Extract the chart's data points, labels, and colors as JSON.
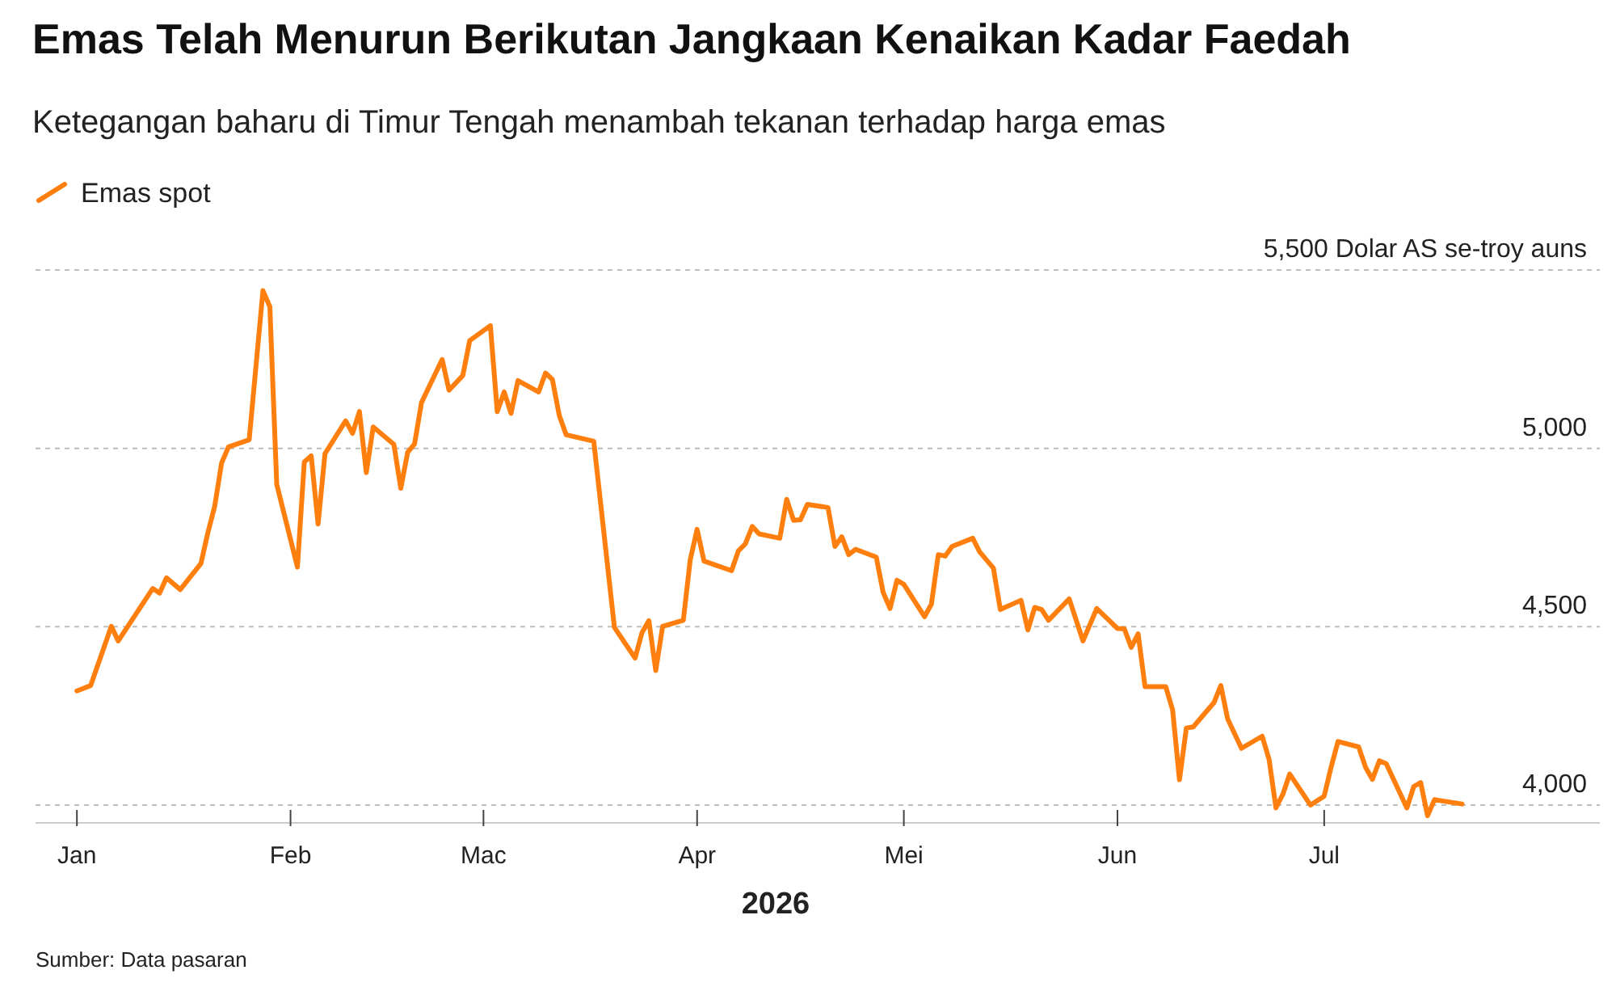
{
  "chart_data": {
    "type": "line",
    "title": "Emas Telah Menurun Berikutan Jangkaan Kenaikan Kadar Faedah",
    "subtitle": "Ketegangan baharu di Timur Tengah menambah tekanan terhadap harga emas",
    "xlabel": "2026",
    "annotations": [
      "Sumber: Data pasaran"
    ],
    "x": [
      "2026-01-01",
      "2026-01-03",
      "2026-01-06",
      "2026-01-07",
      "2026-01-12",
      "2026-01-13",
      "2026-01-14",
      "2026-01-16",
      "2026-01-19",
      "2026-01-20",
      "2026-01-21",
      "2026-01-22",
      "2026-01-23",
      "2026-01-26",
      "2026-01-28",
      "2026-01-29",
      "2026-01-30",
      "2026-02-02",
      "2026-02-03",
      "2026-02-04",
      "2026-02-05",
      "2026-02-06",
      "2026-02-09",
      "2026-02-10",
      "2026-02-11",
      "2026-02-12",
      "2026-02-13",
      "2026-02-16",
      "2026-02-17",
      "2026-02-18",
      "2026-02-19",
      "2026-02-20",
      "2026-02-23",
      "2026-02-24",
      "2026-02-26",
      "2026-02-27",
      "2026-03-02",
      "2026-03-03",
      "2026-03-04",
      "2026-03-05",
      "2026-03-06",
      "2026-03-09",
      "2026-03-10",
      "2026-03-11",
      "2026-03-12",
      "2026-03-13",
      "2026-03-17",
      "2026-03-20",
      "2026-03-23",
      "2026-03-24",
      "2026-03-25",
      "2026-03-26",
      "2026-03-27",
      "2026-03-30",
      "2026-03-31",
      "2026-04-01",
      "2026-04-02",
      "2026-04-06",
      "2026-04-07",
      "2026-04-08",
      "2026-04-09",
      "2026-04-10",
      "2026-04-13",
      "2026-04-14",
      "2026-04-15",
      "2026-04-16",
      "2026-04-17",
      "2026-04-20",
      "2026-04-21",
      "2026-04-22",
      "2026-04-23",
      "2026-04-24",
      "2026-04-27",
      "2026-04-28",
      "2026-04-29",
      "2026-04-30",
      "2026-05-01",
      "2026-05-04",
      "2026-05-05",
      "2026-05-06",
      "2026-05-07",
      "2026-05-08",
      "2026-05-11",
      "2026-05-12",
      "2026-05-14",
      "2026-05-15",
      "2026-05-18",
      "2026-05-19",
      "2026-05-20",
      "2026-05-21",
      "2026-05-22",
      "2026-05-25",
      "2026-05-27",
      "2026-05-29",
      "2026-06-01",
      "2026-06-02",
      "2026-06-03",
      "2026-06-04",
      "2026-06-05",
      "2026-06-08",
      "2026-06-09",
      "2026-06-10",
      "2026-06-11",
      "2026-06-12",
      "2026-06-15",
      "2026-06-16",
      "2026-06-17",
      "2026-06-19",
      "2026-06-22",
      "2026-06-23",
      "2026-06-24",
      "2026-06-25",
      "2026-06-26",
      "2026-06-29",
      "2026-07-01",
      "2026-07-02",
      "2026-07-03",
      "2026-07-06",
      "2026-07-07",
      "2026-07-08",
      "2026-07-09",
      "2026-07-10",
      "2026-07-13",
      "2026-07-14",
      "2026-07-15",
      "2026-07-16",
      "2026-07-17",
      "2026-07-21"
    ],
    "series": [
      {
        "name": "Emas spot",
        "color": "#ff7f0e",
        "values": [
          4320,
          4335,
          4501,
          4460,
          4607,
          4594,
          4637,
          4604,
          4677,
          4763,
          4838,
          4959,
          5004,
          5024,
          5442,
          5397,
          4899,
          4667,
          4962,
          4979,
          4788,
          4985,
          5077,
          5042,
          5103,
          4932,
          5060,
          5011,
          4888,
          4989,
          5012,
          5128,
          5249,
          5163,
          5204,
          5302,
          5344,
          5103,
          5158,
          5098,
          5190,
          5158,
          5211,
          5193,
          5092,
          5038,
          5020,
          4498,
          4412,
          4483,
          4517,
          4377,
          4501,
          4518,
          4687,
          4773,
          4684,
          4657,
          4713,
          4732,
          4781,
          4760,
          4748,
          4857,
          4798,
          4800,
          4843,
          4834,
          4725,
          4752,
          4702,
          4717,
          4695,
          4596,
          4551,
          4630,
          4619,
          4528,
          4563,
          4702,
          4698,
          4725,
          4748,
          4710,
          4664,
          4548,
          4574,
          4491,
          4554,
          4548,
          4518,
          4578,
          4460,
          4551,
          4495,
          4494,
          4442,
          4480,
          4332,
          4332,
          4267,
          4071,
          4216,
          4219,
          4287,
          4335,
          4241,
          4159,
          4193,
          4128,
          3992,
          4030,
          4087,
          4000,
          4025,
          4106,
          4178,
          4163,
          4106,
          4072,
          4124,
          4116,
          3992,
          4052,
          4063,
          3970,
          4015,
          4003
        ]
      }
    ],
    "xlim": [
      "2025-12-26",
      "2026-08-10"
    ],
    "xticks": [
      {
        "value": "2026-01-01",
        "label": "Jan"
      },
      {
        "value": "2026-02-01",
        "label": "Feb"
      },
      {
        "value": "2026-03-01",
        "label": "Mac"
      },
      {
        "value": "2026-04-01",
        "label": "Apr"
      },
      {
        "value": "2026-05-01",
        "label": "Mei"
      },
      {
        "value": "2026-06-01",
        "label": "Jun"
      },
      {
        "value": "2026-07-01",
        "label": "Jul"
      }
    ],
    "ylim": [
      3950,
      5500
    ],
    "yticks": [
      {
        "value": 4000,
        "label": "4,000"
      },
      {
        "value": 4500,
        "label": "4,500"
      },
      {
        "value": 5000,
        "label": "5,000"
      },
      {
        "value": 5500,
        "label": "5,500 Dolar AS se-troy auns"
      }
    ],
    "grid": "y",
    "legend": "top left",
    "marker": "none",
    "line_style": "solid"
  }
}
